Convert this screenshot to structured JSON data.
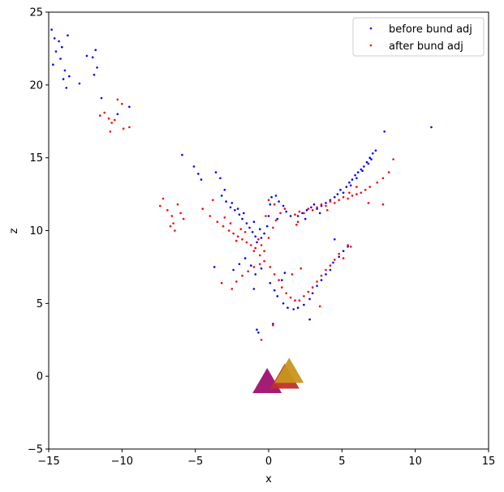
{
  "chart_data": {
    "type": "scatter",
    "xlabel": "x",
    "ylabel": "z",
    "xlim": [
      -15,
      15
    ],
    "ylim": [
      -5,
      25
    ],
    "xticks": [
      -15,
      -10,
      -5,
      0,
      5,
      10,
      15
    ],
    "yticks": [
      -5,
      0,
      5,
      10,
      15,
      20,
      25
    ],
    "grid": false,
    "legend": {
      "position": "top-right"
    },
    "series": [
      {
        "name": "before bund adj",
        "color": "#0000ff",
        "points": [
          [
            -14.8,
            23.8
          ],
          [
            -14.6,
            23.2
          ],
          [
            -14.3,
            23.0
          ],
          [
            -14.1,
            22.6
          ],
          [
            -14.5,
            22.3
          ],
          [
            -14.2,
            21.8
          ],
          [
            -13.9,
            21.0
          ],
          [
            -14.0,
            20.4
          ],
          [
            -13.8,
            19.8
          ],
          [
            -14.7,
            21.4
          ],
          [
            -13.7,
            23.4
          ],
          [
            -13.6,
            20.6
          ],
          [
            -12.4,
            22.0
          ],
          [
            -12.0,
            21.9
          ],
          [
            -11.8,
            22.4
          ],
          [
            -11.7,
            21.2
          ],
          [
            -11.9,
            20.7
          ],
          [
            -12.9,
            20.1
          ],
          [
            -11.4,
            19.1
          ],
          [
            -10.3,
            18.0
          ],
          [
            -9.5,
            18.5
          ],
          [
            -5.9,
            15.2
          ],
          [
            -5.1,
            14.4
          ],
          [
            -4.8,
            13.9
          ],
          [
            -4.6,
            13.5
          ],
          [
            -3.6,
            14.0
          ],
          [
            -3.3,
            13.6
          ],
          [
            -3.0,
            12.8
          ],
          [
            -3.2,
            12.4
          ],
          [
            -2.9,
            12.0
          ],
          [
            -2.6,
            11.6
          ],
          [
            -2.3,
            11.4
          ],
          [
            -2.0,
            11.1
          ],
          [
            -1.8,
            10.8
          ],
          [
            -1.5,
            10.5
          ],
          [
            -1.3,
            10.2
          ],
          [
            -1.1,
            9.9
          ],
          [
            -0.9,
            9.6
          ],
          [
            -0.8,
            9.2
          ],
          [
            -0.5,
            9.5
          ],
          [
            -0.3,
            9.8
          ],
          [
            -0.1,
            10.3
          ],
          [
            0.0,
            11.0
          ],
          [
            0.1,
            11.8
          ],
          [
            0.2,
            12.3
          ],
          [
            0.5,
            12.4
          ],
          [
            0.7,
            12.0
          ],
          [
            1.0,
            11.7
          ],
          [
            1.2,
            11.3
          ],
          [
            1.5,
            11.0
          ],
          [
            0.6,
            10.8
          ],
          [
            -2.5,
            11.9
          ],
          [
            -2.1,
            11.5
          ],
          [
            -1.7,
            11.2
          ],
          [
            -1.0,
            10.6
          ],
          [
            -0.6,
            10.1
          ],
          [
            2.0,
            11.0
          ],
          [
            2.3,
            11.2
          ],
          [
            2.6,
            11.4
          ],
          [
            2.9,
            11.6
          ],
          [
            3.1,
            11.8
          ],
          [
            3.3,
            11.5
          ],
          [
            3.6,
            11.7
          ],
          [
            3.9,
            11.9
          ],
          [
            4.2,
            12.1
          ],
          [
            4.5,
            12.3
          ],
          [
            4.7,
            12.5
          ],
          [
            4.9,
            12.8
          ],
          [
            5.1,
            12.6
          ],
          [
            5.3,
            13.0
          ],
          [
            5.5,
            13.3
          ],
          [
            5.7,
            13.5
          ],
          [
            5.9,
            13.8
          ],
          [
            6.1,
            14.0
          ],
          [
            6.3,
            14.2
          ],
          [
            6.5,
            14.4
          ],
          [
            6.7,
            14.7
          ],
          [
            6.9,
            15.0
          ],
          [
            7.1,
            15.3
          ],
          [
            7.3,
            15.5
          ],
          [
            5.6,
            13.1
          ],
          [
            6.0,
            13.6
          ],
          [
            6.4,
            14.1
          ],
          [
            6.8,
            14.6
          ],
          [
            7.0,
            14.9
          ],
          [
            2.5,
            10.8
          ],
          [
            3.5,
            11.2
          ],
          [
            7.9,
            16.8
          ],
          [
            11.1,
            17.1
          ],
          [
            -3.7,
            7.5
          ],
          [
            -2.4,
            7.3
          ],
          [
            -2.0,
            7.7
          ],
          [
            -1.6,
            8.1
          ],
          [
            -1.2,
            7.6
          ],
          [
            -0.9,
            7.0
          ],
          [
            -0.5,
            7.4
          ],
          [
            0.1,
            6.4
          ],
          [
            0.4,
            5.9
          ],
          [
            0.6,
            5.5
          ],
          [
            1.0,
            5.0
          ],
          [
            1.3,
            4.7
          ],
          [
            1.7,
            4.6
          ],
          [
            2.0,
            4.7
          ],
          [
            2.4,
            4.9
          ],
          [
            2.8,
            5.3
          ],
          [
            3.0,
            5.7
          ],
          [
            3.3,
            6.2
          ],
          [
            3.6,
            6.6
          ],
          [
            3.9,
            7.0
          ],
          [
            4.2,
            7.3
          ],
          [
            4.4,
            7.8
          ],
          [
            4.8,
            8.2
          ],
          [
            5.1,
            8.6
          ],
          [
            5.4,
            8.9
          ],
          [
            4.5,
            9.4
          ],
          [
            1.1,
            7.1
          ],
          [
            0.9,
            6.6
          ],
          [
            -0.8,
            3.2
          ],
          [
            -0.7,
            3.0
          ],
          [
            0.3,
            3.6
          ],
          [
            2.8,
            3.9
          ],
          [
            -1.0,
            6.0
          ]
        ]
      },
      {
        "name": "after bund adj",
        "color": "#ff0000",
        "points": [
          [
            -10.3,
            19.0
          ],
          [
            -10.0,
            18.7
          ],
          [
            -11.2,
            18.1
          ],
          [
            -10.9,
            17.7
          ],
          [
            -10.7,
            17.4
          ],
          [
            -10.8,
            16.8
          ],
          [
            -9.9,
            17.0
          ],
          [
            -9.5,
            17.1
          ],
          [
            -11.5,
            17.9
          ],
          [
            -10.5,
            17.6
          ],
          [
            -7.4,
            11.7
          ],
          [
            -7.2,
            12.2
          ],
          [
            -6.9,
            11.4
          ],
          [
            -6.6,
            11.0
          ],
          [
            -6.5,
            10.5
          ],
          [
            -6.4,
            10.0
          ],
          [
            -6.7,
            10.3
          ],
          [
            -6.0,
            11.2
          ],
          [
            -5.8,
            10.8
          ],
          [
            -6.2,
            11.8
          ],
          [
            -4.5,
            11.5
          ],
          [
            -4.0,
            11.0
          ],
          [
            -3.8,
            12.1
          ],
          [
            -3.5,
            10.6
          ],
          [
            -3.1,
            10.3
          ],
          [
            -2.7,
            10.0
          ],
          [
            -2.4,
            9.8
          ],
          [
            -2.1,
            9.6
          ],
          [
            -1.8,
            9.4
          ],
          [
            -1.5,
            9.2
          ],
          [
            -1.2,
            9.0
          ],
          [
            -0.9,
            8.8
          ],
          [
            -0.7,
            9.4
          ],
          [
            -0.5,
            9.0
          ],
          [
            -0.3,
            8.6
          ],
          [
            0.0,
            9.5
          ],
          [
            0.3,
            10.2
          ],
          [
            0.5,
            10.7
          ],
          [
            0.8,
            11.2
          ],
          [
            1.1,
            11.5
          ],
          [
            0.4,
            11.8
          ],
          [
            0.0,
            12.1
          ],
          [
            -0.2,
            11.0
          ],
          [
            -1.6,
            9.9
          ],
          [
            -1.9,
            10.1
          ],
          [
            -2.6,
            10.5
          ],
          [
            -3.0,
            10.9
          ],
          [
            -2.2,
            9.3
          ],
          [
            -1.0,
            8.6
          ],
          [
            -0.6,
            8.3
          ],
          [
            1.8,
            11.1
          ],
          [
            2.1,
            11.3
          ],
          [
            2.4,
            11.2
          ],
          [
            2.7,
            11.5
          ],
          [
            3.0,
            11.4
          ],
          [
            3.3,
            11.6
          ],
          [
            3.6,
            11.8
          ],
          [
            3.9,
            11.7
          ],
          [
            4.2,
            12.0
          ],
          [
            4.5,
            11.9
          ],
          [
            4.8,
            12.1
          ],
          [
            5.1,
            12.3
          ],
          [
            5.4,
            12.2
          ],
          [
            5.7,
            12.4
          ],
          [
            6.0,
            12.5
          ],
          [
            6.3,
            12.6
          ],
          [
            6.6,
            12.8
          ],
          [
            6.9,
            13.0
          ],
          [
            7.4,
            13.3
          ],
          [
            7.8,
            13.6
          ],
          [
            8.2,
            14.0
          ],
          [
            8.5,
            14.9
          ],
          [
            6.0,
            13.0
          ],
          [
            5.5,
            12.6
          ],
          [
            4.0,
            11.4
          ],
          [
            2.0,
            10.6
          ],
          [
            1.9,
            10.4
          ],
          [
            7.8,
            11.8
          ],
          [
            6.8,
            11.9
          ],
          [
            -3.2,
            6.4
          ],
          [
            -2.5,
            6.0
          ],
          [
            -2.2,
            6.5
          ],
          [
            -1.8,
            6.9
          ],
          [
            -1.4,
            7.2
          ],
          [
            -1.0,
            7.5
          ],
          [
            -0.6,
            7.7
          ],
          [
            -0.3,
            7.9
          ],
          [
            0.1,
            7.5
          ],
          [
            0.4,
            7.0
          ],
          [
            0.7,
            6.6
          ],
          [
            0.9,
            6.1
          ],
          [
            1.2,
            5.7
          ],
          [
            1.5,
            5.4
          ],
          [
            1.8,
            5.2
          ],
          [
            2.1,
            5.2
          ],
          [
            2.4,
            5.5
          ],
          [
            2.7,
            5.8
          ],
          [
            3.0,
            6.1
          ],
          [
            3.3,
            6.5
          ],
          [
            3.6,
            6.9
          ],
          [
            3.9,
            7.3
          ],
          [
            4.2,
            7.6
          ],
          [
            4.5,
            8.0
          ],
          [
            4.8,
            8.4
          ],
          [
            5.1,
            8.1
          ],
          [
            5.6,
            8.9
          ],
          [
            5.4,
            9.0
          ],
          [
            2.2,
            7.4
          ],
          [
            1.6,
            7.0
          ],
          [
            -0.5,
            2.5
          ],
          [
            0.3,
            3.5
          ],
          [
            3.5,
            4.8
          ]
        ]
      }
    ],
    "cameras": [
      {
        "x": -0.1,
        "z": -0.6,
        "color": "#a01070"
      },
      {
        "x": 1.1,
        "z": -0.3,
        "color": "#c0302a"
      },
      {
        "x": 1.4,
        "z": 0.1,
        "color": "#c8961e"
      }
    ]
  }
}
